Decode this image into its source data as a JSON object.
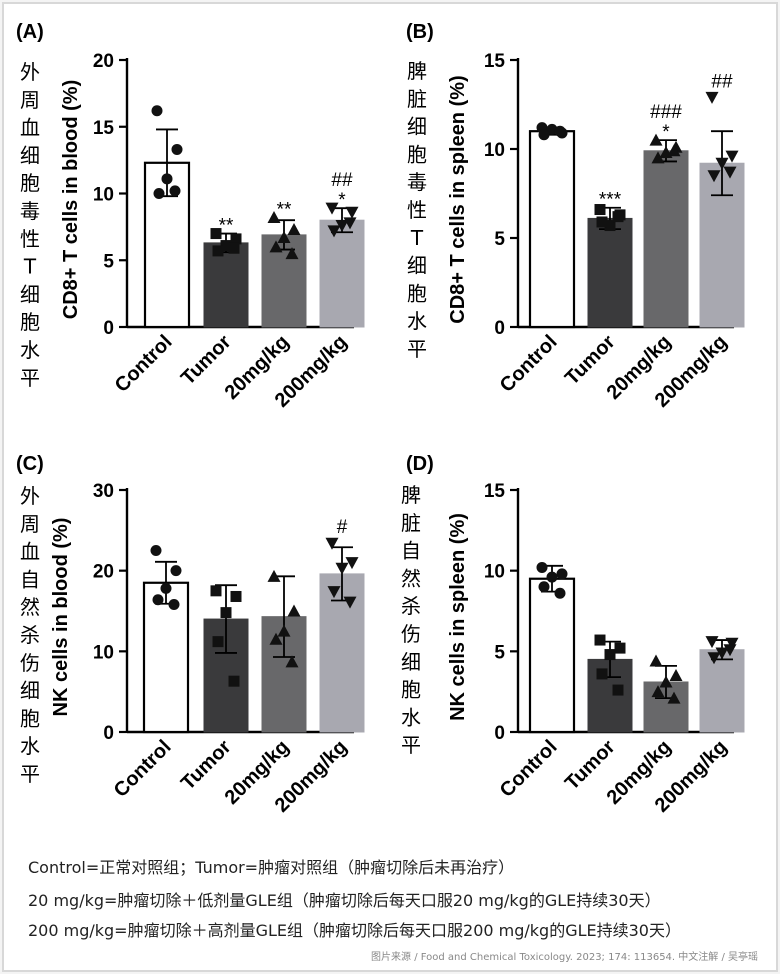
{
  "chart_data": [
    {
      "id": "A",
      "type": "bar",
      "panel_label": "(A)",
      "side_label_zh": "外周血细胞毒性T细胞水平",
      "ylabel": "CD8+ T cells in blood (%)",
      "ylim": [
        0,
        20
      ],
      "yticks": [
        0,
        5,
        10,
        15,
        20
      ],
      "categories": [
        "Control",
        "Tumor",
        "20mg/kg",
        "200mg/kg"
      ],
      "values": [
        12.3,
        6.3,
        6.9,
        8.0
      ],
      "sd": [
        2.5,
        0.7,
        1.1,
        0.9
      ],
      "points": [
        [
          16.2,
          13.3,
          11.1,
          10.0,
          10.2
        ],
        [
          7.0,
          6.6,
          6.1,
          5.7,
          5.9
        ],
        [
          8.2,
          7.3,
          6.7,
          6.0,
          5.5
        ],
        [
          8.9,
          8.6,
          7.6,
          7.2,
          7.8
        ]
      ],
      "marker": [
        "circle",
        "square",
        "triangle-up",
        "triangle-down"
      ],
      "significance": [
        [
          "",
          ""
        ],
        [
          "**",
          ""
        ],
        [
          "**",
          ""
        ],
        [
          "*",
          "##"
        ]
      ],
      "colors": [
        "#ffffff",
        "#3a3a3c",
        "#68686a",
        "#a8a8b0"
      ]
    },
    {
      "id": "B",
      "type": "bar",
      "panel_label": "(B)",
      "side_label_zh": "脾脏细胞毒性T细胞水平",
      "ylabel": "CD8+ T cells in spleen (%)",
      "ylim": [
        0,
        15
      ],
      "yticks": [
        0,
        5,
        10,
        15
      ],
      "categories": [
        "Control",
        "Tumor",
        "20mg/kg",
        "200mg/kg"
      ],
      "values": [
        11.0,
        6.1,
        9.9,
        9.2
      ],
      "sd": [
        0.2,
        0.6,
        0.6,
        1.8
      ],
      "points": [
        [
          11.2,
          10.9,
          11.1,
          10.8,
          11.0
        ],
        [
          6.6,
          6.3,
          5.7,
          5.9,
          6.2
        ],
        [
          10.5,
          10.1,
          9.8,
          9.5,
          9.9
        ],
        [
          12.9,
          9.6,
          9.2,
          8.5,
          8.7
        ]
      ],
      "marker": [
        "circle",
        "square",
        "triangle-up",
        "triangle-down"
      ],
      "significance": [
        [
          "",
          ""
        ],
        [
          "***",
          ""
        ],
        [
          "*",
          "###"
        ],
        [
          "",
          "##"
        ]
      ],
      "colors": [
        "#ffffff",
        "#3a3a3c",
        "#68686a",
        "#a8a8b0"
      ]
    },
    {
      "id": "C",
      "type": "bar",
      "panel_label": "(C)",
      "side_label_zh": "外周血自然杀伤细胞水平",
      "ylabel": "NK cells in blood (%)",
      "ylim": [
        0,
        30
      ],
      "yticks": [
        0,
        10,
        20,
        30
      ],
      "categories": [
        "Control",
        "Tumor",
        "20mg/kg",
        "200mg/kg"
      ],
      "values": [
        18.5,
        14.0,
        14.3,
        19.6
      ],
      "sd": [
        2.6,
        4.2,
        5.0,
        3.3
      ],
      "points": [
        [
          22.5,
          20.0,
          17.8,
          16.4,
          15.8
        ],
        [
          17.5,
          16.8,
          14.8,
          11.2,
          6.3
        ],
        [
          19.3,
          15.0,
          12.5,
          11.5,
          8.7
        ],
        [
          23.4,
          21.0,
          20.3,
          17.4,
          16.1
        ]
      ],
      "marker": [
        "circle",
        "square",
        "triangle-up",
        "triangle-down"
      ],
      "significance": [
        [
          "",
          ""
        ],
        [
          "",
          ""
        ],
        [
          "",
          ""
        ],
        [
          "",
          "#"
        ]
      ],
      "colors": [
        "#ffffff",
        "#3a3a3c",
        "#68686a",
        "#a8a8b0"
      ]
    },
    {
      "id": "D",
      "type": "bar",
      "panel_label": "(D)",
      "side_label_zh": "脾脏自然杀伤细胞水平",
      "ylabel": "NK cells in spleen (%)",
      "ylim": [
        0,
        15
      ],
      "yticks": [
        0,
        5,
        10,
        15
      ],
      "categories": [
        "Control",
        "Tumor",
        "20mg/kg",
        "200mg/kg"
      ],
      "values": [
        9.5,
        4.5,
        3.1,
        5.1
      ],
      "sd": [
        0.8,
        1.1,
        1.0,
        0.6
      ],
      "points": [
        [
          10.2,
          9.8,
          9.6,
          9.0,
          8.6
        ],
        [
          5.7,
          5.2,
          4.8,
          3.6,
          2.6
        ],
        [
          4.4,
          3.5,
          3.1,
          2.5,
          2.1
        ],
        [
          5.6,
          5.5,
          4.9,
          4.6,
          5.1
        ]
      ],
      "marker": [
        "circle",
        "square",
        "triangle-up",
        "triangle-down"
      ],
      "significance": [
        [
          "",
          ""
        ],
        [
          "",
          ""
        ],
        [
          "",
          ""
        ],
        [
          "",
          ""
        ]
      ],
      "colors": [
        "#ffffff",
        "#3a3a3c",
        "#68686a",
        "#a8a8b0"
      ]
    }
  ],
  "caption": {
    "line1": "Control=正常对照组；Tumor=肿瘤对照组（肿瘤切除后未再治疗）",
    "line2": "20 mg/kg=肿瘤切除＋低剂量GLE组（肿瘤切除后每天口服20 mg/kg的GLE持续30天）",
    "line3": "200 mg/kg=肿瘤切除＋高剂量GLE组（肿瘤切除后每天口服200 mg/kg的GLE持续30天）"
  },
  "source_note": "图片来源 / Food and Chemical Toxicology. 2023; 174: 113654.  中文注解 / 吴亭瑶"
}
